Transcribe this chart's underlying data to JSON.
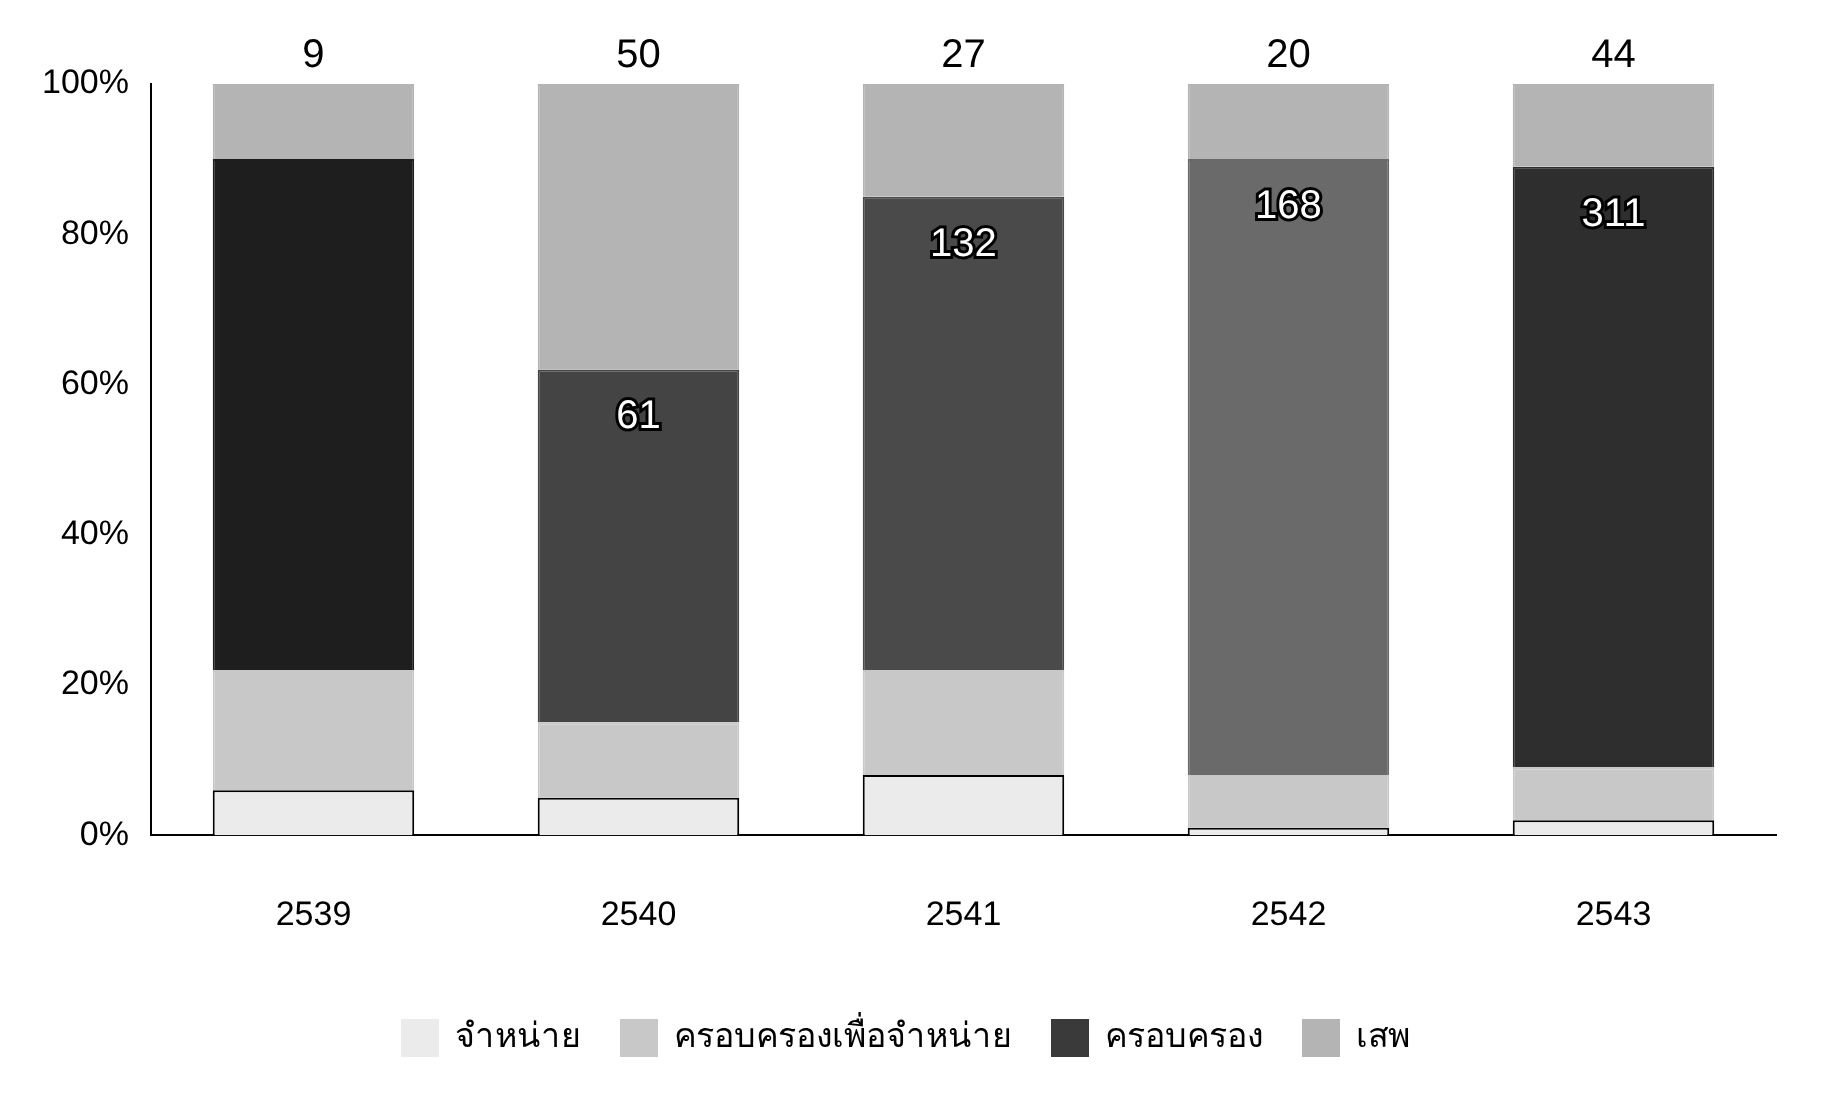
{
  "chart_data": {
    "type": "bar",
    "stacked": true,
    "categories": [
      "2539",
      "2540",
      "2541",
      "2542",
      "2543"
    ],
    "series": [
      {
        "name": "จำหน่าย",
        "color": "#ebebeb",
        "values": [
          6,
          5,
          8,
          1,
          2
        ]
      },
      {
        "name": "ครอบครองเพื่อจำหน่าย",
        "color": "#c8c8c8",
        "values": [
          16,
          10,
          14,
          7,
          7
        ]
      },
      {
        "name": "ครอบครอง",
        "color": "#3a3a3a",
        "colors": [
          "#1e1e1e",
          "#444444",
          "#4a4a4a",
          "#6a6a6a",
          "#2e2e2e"
        ],
        "values": [
          68,
          47,
          63,
          82,
          80
        ]
      },
      {
        "name": "เสพ",
        "color": "#b4b4b4",
        "values": [
          10,
          38,
          15,
          10,
          11
        ]
      }
    ],
    "annotations": [
      {
        "text": "9",
        "x": "2539",
        "y": 100
      },
      {
        "text": "50",
        "x": "2540",
        "y": 100
      },
      {
        "text": "61",
        "x": "2540",
        "y": 62
      },
      {
        "text": "27",
        "x": "2541",
        "y": 100
      },
      {
        "text": "132",
        "x": "2541",
        "y": 85
      },
      {
        "text": "20",
        "x": "2542",
        "y": 100
      },
      {
        "text": "168",
        "x": "2542",
        "y": 90
      },
      {
        "text": "44",
        "x": "2543",
        "y": 100
      },
      {
        "text": "311",
        "x": "2543",
        "y": 89
      }
    ],
    "ylim": [
      0,
      100
    ],
    "yticks": [
      {
        "value": 0,
        "label": "0%"
      },
      {
        "value": 20,
        "label": "20%"
      },
      {
        "value": 40,
        "label": "40%"
      },
      {
        "value": 60,
        "label": "60%"
      },
      {
        "value": 80,
        "label": "80%"
      },
      {
        "value": 100,
        "label": "100%"
      }
    ],
    "grid": false,
    "legend": "bottom"
  }
}
